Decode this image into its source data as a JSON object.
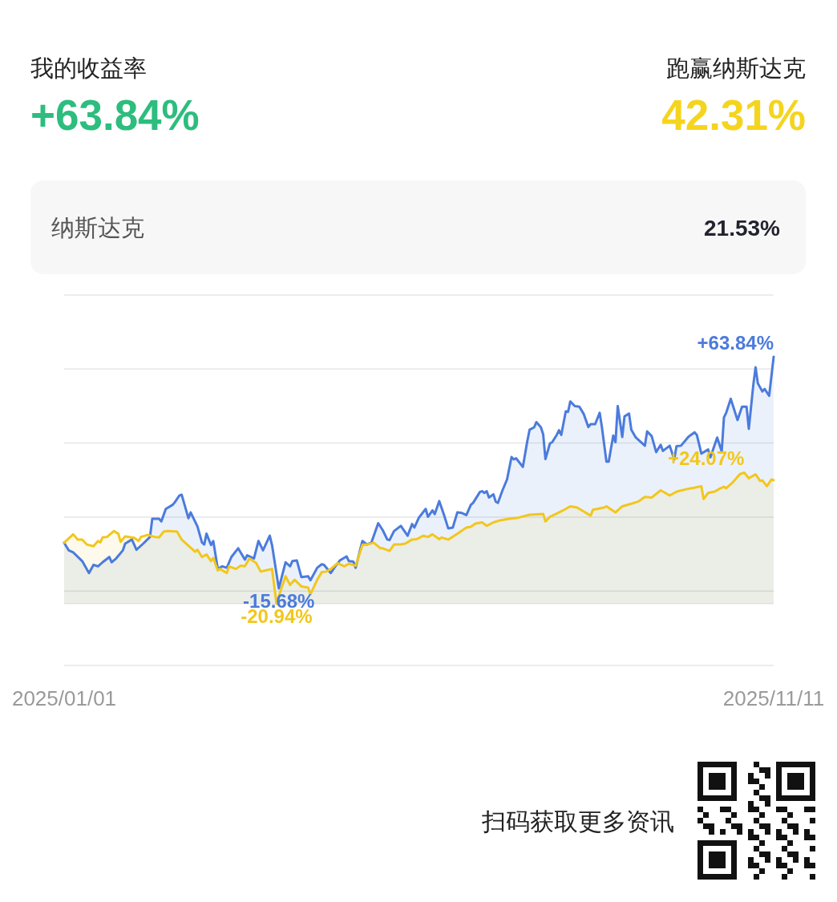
{
  "chart_data": [
    {
      "type": "other",
      "annotations": [
        "我的收益率",
        "+63.84%",
        "跑赢纳斯达克",
        "42.31%",
        "纳斯达克",
        "21.53%"
      ]
    },
    {
      "type": "line",
      "xlim": [
        "2025-01-01",
        "2025-11-11"
      ],
      "xticks": [
        {
          "value": "2025-01-01",
          "label": "2025/01/01"
        },
        {
          "value": "2025-11-11",
          "label": "2025/11/11"
        }
      ],
      "ylim": [
        -20.94,
        85
      ],
      "yticks": [
        {
          "value": -16.6,
          "label": null
        },
        {
          "value": 8.8,
          "label": null
        },
        {
          "value": 34.2,
          "label": null
        },
        {
          "value": 59.6,
          "label": null
        },
        {
          "value": 85,
          "label": null
        }
      ],
      "grid": "y",
      "tick_labels": "x",
      "series": [
        {
          "color": "#4b7bdc",
          "x": [
            "2025-01-01",
            "2025-01-03",
            "2025-01-05",
            "2025-01-09",
            "2025-01-12",
            "2025-01-14",
            "2025-01-16",
            "2025-01-18",
            "2025-01-21",
            "2025-01-22",
            "2025-01-24",
            "2025-01-27",
            "2025-01-28",
            "2025-01-31",
            "2025-02-02",
            "2025-02-05",
            "2025-02-08",
            "2025-02-09",
            "2025-02-12",
            "2025-02-13",
            "2025-02-15",
            "2025-02-18",
            "2025-02-19",
            "2025-02-21",
            "2025-02-22",
            "2025-02-25",
            "2025-02-26",
            "2025-03-01",
            "2025-03-03",
            "2025-03-04",
            "2025-03-05",
            "2025-03-07",
            "2025-03-08",
            "2025-03-10",
            "2025-03-12",
            "2025-03-14",
            "2025-03-16",
            "2025-03-19",
            "2025-03-22",
            "2025-03-23",
            "2025-03-26",
            "2025-03-28",
            "2025-03-30",
            "2025-04-02",
            "2025-04-03",
            "2025-04-06",
            "2025-04-09",
            "2025-04-11",
            "2025-04-12",
            "2025-04-14",
            "2025-04-16",
            "2025-04-19",
            "2025-04-20",
            "2025-04-23",
            "2025-04-25",
            "2025-04-26",
            "2025-04-29",
            "2025-05-01",
            "2025-05-03",
            "2025-05-06",
            "2025-05-07",
            "2025-05-09",
            "2025-05-10",
            "2025-05-13",
            "2025-05-15",
            "2025-05-17",
            "2025-05-20",
            "2025-05-22",
            "2025-05-24",
            "2025-05-25",
            "2025-05-27",
            "2025-05-30",
            "2025-06-02",
            "2025-06-04",
            "2025-06-05",
            "2025-06-07",
            "2025-06-10",
            "2025-06-11",
            "2025-06-13",
            "2025-06-14",
            "2025-06-16",
            "2025-06-18",
            "2025-06-20",
            "2025-06-22",
            "2025-06-24",
            "2025-06-26",
            "2025-06-28",
            "2025-06-30",
            "2025-07-01",
            "2025-07-04",
            "2025-07-05",
            "2025-07-06",
            "2025-07-07",
            "2025-07-08",
            "2025-07-10",
            "2025-07-11",
            "2025-07-12",
            "2025-07-14",
            "2025-07-16",
            "2025-07-18",
            "2025-07-19",
            "2025-07-20",
            "2025-07-23",
            "2025-07-25",
            "2025-07-26",
            "2025-07-28",
            "2025-07-29",
            "2025-07-31",
            "2025-08-01",
            "2025-08-02",
            "2025-08-04",
            "2025-08-05",
            "2025-08-07",
            "2025-08-08",
            "2025-08-09",
            "2025-08-11",
            "2025-08-12",
            "2025-08-13",
            "2025-08-15",
            "2025-08-17",
            "2025-08-19",
            "2025-08-21",
            "2025-08-22",
            "2025-08-24",
            "2025-08-26",
            "2025-08-27",
            "2025-08-29",
            "2025-08-30",
            "2025-09-01",
            "2025-09-02",
            "2025-09-03",
            "2025-09-05",
            "2025-09-06",
            "2025-09-08",
            "2025-09-09",
            "2025-09-11",
            "2025-09-15",
            "2025-09-16",
            "2025-09-18",
            "2025-09-20",
            "2025-09-22",
            "2025-09-23",
            "2025-09-26",
            "2025-09-28",
            "2025-09-29",
            "2025-10-01",
            "2025-10-04",
            "2025-10-05",
            "2025-10-07",
            "2025-10-08",
            "2025-10-10",
            "2025-10-13",
            "2025-10-14",
            "2025-10-17",
            "2025-10-19",
            "2025-10-20",
            "2025-10-21",
            "2025-10-23",
            "2025-10-26",
            "2025-10-28",
            "2025-10-30",
            "2025-10-31",
            "2025-11-02",
            "2025-11-03",
            "2025-11-04",
            "2025-11-06",
            "2025-11-07",
            "2025-11-09",
            "2025-11-11"
          ],
          "values": [
            0,
            -2.6,
            -3.3,
            -6.3,
            -10.4,
            -7.6,
            -8.1,
            -6.7,
            -4.9,
            -6.7,
            -5.4,
            -2.6,
            -0.3,
            1.1,
            -2.4,
            -0.3,
            2.0,
            8.2,
            8.2,
            7.3,
            11.6,
            13.0,
            13.9,
            16.2,
            16.5,
            8.4,
            10.4,
            5.6,
            0.1,
            -0.6,
            3.1,
            -0.8,
            0.6,
            -9.0,
            -8.1,
            -8.6,
            -4.9,
            -1.9,
            -5.8,
            -4.3,
            -5.4,
            0.6,
            -2.6,
            2.4,
            -0.8,
            -15.68,
            -6.7,
            -8.1,
            -6.3,
            -6.1,
            -11.8,
            -11.5,
            -12.9,
            -8.6,
            -7.4,
            -7.6,
            -10.4,
            -8.1,
            -6.1,
            -4.7,
            -6.3,
            -6.5,
            -8.6,
            0.6,
            -0.6,
            0.1,
            6.7,
            4.3,
            1.1,
            0.9,
            4.0,
            5.8,
            2.4,
            6.4,
            5.2,
            8.6,
            11.6,
            8.9,
            11.1,
            9.8,
            14.3,
            9.8,
            4.9,
            5.2,
            10.4,
            10.2,
            9.5,
            13.0,
            13.7,
            17.4,
            17.7,
            17.1,
            17.7,
            15.5,
            16.6,
            14.1,
            13.7,
            18.0,
            21.7,
            29.4,
            28.6,
            29.0,
            26.0,
            35.0,
            38.8,
            39.6,
            41.4,
            39.6,
            37.2,
            28.7,
            34.1,
            34.5,
            37.0,
            38.6,
            37.0,
            45.1,
            44.9,
            48.5,
            46.9,
            46.7,
            44.1,
            39.7,
            40.7,
            40.7,
            44.6,
            39.6,
            27.8,
            27.8,
            36.8,
            34.5,
            46.9,
            36.3,
            43.4,
            44.3,
            38.8,
            36.1,
            33.3,
            38.2,
            36.6,
            31.1,
            33.6,
            31.5,
            33.3,
            28.6,
            33.1,
            33.3,
            36.1,
            36.8,
            37.9,
            37.0,
            30.6,
            32.0,
            29.3,
            36.1,
            31.3,
            43.0,
            44.6,
            49.4,
            42.1,
            46.7,
            46.7,
            39.1,
            54.2,
            60.2,
            54.7,
            51.9,
            52.8,
            50.4,
            63.84
          ],
          "upper": [
            0,
            -2.6,
            -3.3,
            -6.3,
            -10.4,
            -7.6,
            -8.1,
            -6.7,
            -4.9,
            -6.7,
            -5.4,
            -2.6,
            -0.3,
            1.1,
            -2.4,
            -0.3,
            2.0,
            8.2,
            8.2,
            7.3,
            11.6,
            13.0,
            13.9,
            16.2,
            16.5,
            8.4,
            10.4,
            5.6,
            0.1,
            -0.6,
            3.1,
            -0.8,
            0.6,
            -9.0,
            -8.1,
            -8.6,
            -4.9,
            -1.9,
            -5.8,
            -4.3,
            -5.4,
            0.6,
            -2.6,
            2.4,
            -0.8,
            -15.68,
            -6.7,
            -8.1,
            -6.3,
            -6.1,
            -11.8,
            -11.5,
            -12.9,
            -8.6,
            -7.4,
            -7.6,
            -10.4,
            -8.1,
            -6.1,
            -4.7,
            -6.3,
            -6.5,
            -8.6,
            0.6,
            -0.6,
            0.1,
            6.7,
            4.3,
            1.1,
            0.9,
            4.0,
            5.8,
            2.4,
            6.4,
            5.2,
            8.6,
            11.6,
            8.9,
            11.1,
            9.8,
            14.3,
            9.8,
            4.9,
            5.2,
            10.4,
            10.2,
            9.5,
            13.0,
            13.7,
            17.4,
            17.7,
            17.1,
            17.7,
            15.5,
            16.6,
            14.1,
            13.7,
            18.0,
            21.7,
            29.4,
            28.6,
            29.0,
            26.0,
            35.0,
            38.8,
            39.6,
            41.4,
            39.6,
            37.2,
            28.7,
            34.1,
            34.5,
            37.0,
            38.6,
            37.0,
            45.1,
            44.9,
            48.5,
            46.9,
            46.7,
            44.1,
            39.7,
            40.7,
            40.7,
            44.6,
            39.6,
            27.8,
            27.8,
            36.8,
            34.5,
            46.9,
            36.3,
            43.4,
            44.3,
            38.8,
            36.1,
            33.3,
            38.2,
            36.6,
            31.1,
            33.6,
            31.5,
            33.3,
            28.6,
            33.1,
            33.3,
            36.1,
            36.8,
            37.9,
            37.0,
            30.6,
            32.0,
            29.3,
            36.1,
            31.3,
            43.0,
            44.6,
            49.4,
            42.1,
            46.7,
            46.7,
            39.1,
            54.2,
            60.2,
            54.7,
            51.9,
            52.8,
            50.4,
            63.84
          ],
          "lower": [
            -20.94,
            -20.94,
            -20.94,
            -20.94,
            -20.94,
            -20.94,
            -20.94,
            -20.94,
            -20.94,
            -20.94,
            -20.94,
            -20.94,
            -20.94,
            -20.94,
            -20.94,
            -20.94,
            -20.94,
            -20.94,
            -20.94,
            -20.94,
            -20.94,
            -20.94,
            -20.94,
            -20.94,
            -20.94,
            -20.94,
            -20.94,
            -20.94,
            -20.94,
            -20.94,
            -20.94,
            -20.94,
            -20.94,
            -20.94,
            -20.94,
            -20.94,
            -20.94,
            -20.94,
            -20.94,
            -20.94,
            -20.94,
            -20.94,
            -20.94,
            -20.94,
            -20.94,
            -20.94,
            -20.94,
            -20.94,
            -20.94,
            -20.94,
            -20.94,
            -20.94,
            -20.94,
            -20.94,
            -20.94,
            -20.94,
            -20.94,
            -20.94,
            -20.94,
            -20.94,
            -20.94,
            -20.94,
            -20.94,
            -20.94,
            -20.94,
            -20.94,
            -20.94,
            -20.94,
            -20.94,
            -20.94,
            -20.94,
            -20.94,
            -20.94,
            -20.94,
            -20.94,
            -20.94,
            -20.94,
            -20.94,
            -20.94,
            -20.94,
            -20.94,
            -20.94,
            -20.94,
            -20.94,
            -20.94,
            -20.94,
            -20.94,
            -20.94,
            -20.94,
            -20.94,
            -20.94,
            -20.94,
            -20.94,
            -20.94,
            -20.94,
            -20.94,
            -20.94,
            -20.94,
            -20.94,
            -20.94,
            -20.94,
            -20.94,
            -20.94,
            -20.94,
            -20.94,
            -20.94,
            -20.94,
            -20.94,
            -20.94,
            -20.94,
            -20.94,
            -20.94,
            -20.94,
            -20.94,
            -20.94,
            -20.94,
            -20.94,
            -20.94,
            -20.94,
            -20.94,
            -20.94,
            -20.94,
            -20.94,
            -20.94,
            -20.94,
            -20.94,
            -20.94,
            -20.94,
            -20.94,
            -20.94,
            -20.94,
            -20.94,
            -20.94,
            -20.94,
            -20.94,
            -20.94,
            -20.94,
            -20.94,
            -20.94,
            -20.94,
            -20.94,
            -20.94,
            -20.94,
            -20.94,
            -20.94,
            -20.94,
            -20.94,
            -20.94,
            -20.94,
            -20.94,
            -20.94,
            -20.94,
            -20.94,
            -20.94,
            -20.94,
            -20.94,
            -20.94,
            -20.94,
            -20.94,
            -20.94,
            -20.94,
            -20.94,
            -20.94,
            -20.94,
            -20.94,
            -20.94,
            -20.94,
            -20.94,
            -20.94
          ],
          "value_labels": [
            null,
            null,
            null,
            null,
            null,
            null,
            null,
            null,
            null,
            null,
            null,
            null,
            null,
            null,
            null,
            null,
            null,
            null,
            null,
            null,
            null,
            null,
            null,
            null,
            null,
            null,
            null,
            null,
            null,
            null,
            null,
            null,
            null,
            null,
            null,
            null,
            null,
            null,
            null,
            null,
            null,
            null,
            null,
            null,
            null,
            "-15.68%",
            null,
            null,
            null,
            null,
            null,
            null,
            null,
            null,
            null,
            null,
            null,
            null,
            null,
            null,
            null,
            null,
            null,
            null,
            null,
            null,
            null,
            null,
            null,
            null,
            null,
            null,
            null,
            null,
            null,
            null,
            null,
            null,
            null,
            null,
            null,
            null,
            null,
            null,
            null,
            null,
            null,
            null,
            null,
            null,
            null,
            null,
            null,
            null,
            null,
            null,
            null,
            null,
            null,
            null,
            null,
            null,
            null,
            null,
            null,
            null,
            null,
            null,
            null,
            null,
            null,
            null,
            null,
            null,
            null,
            null,
            null,
            null,
            null,
            null,
            null,
            null,
            null,
            null,
            null,
            null,
            null,
            null,
            null,
            null,
            null,
            null,
            null,
            null,
            null,
            null,
            null,
            null,
            null,
            null,
            null,
            null,
            null,
            null,
            null,
            null,
            null,
            null,
            null,
            null,
            null,
            null,
            null,
            null,
            null,
            null,
            null,
            null,
            null,
            null,
            null,
            null,
            null,
            null,
            null,
            null,
            null,
            null,
            "+63.84%"
          ]
        },
        {
          "color": "#f2c71c",
          "x": [
            "2025-01-01",
            "2025-01-05",
            "2025-01-07",
            "2025-01-09",
            "2025-01-11",
            "2025-01-14",
            "2025-01-16",
            "2025-01-17",
            "2025-01-18",
            "2025-01-20",
            "2025-01-23",
            "2025-01-25",
            "2025-01-26",
            "2025-01-28",
            "2025-02-01",
            "2025-02-03",
            "2025-02-04",
            "2025-02-07",
            "2025-02-10",
            "2025-02-12",
            "2025-02-14",
            "2025-02-16",
            "2025-02-20",
            "2025-02-22",
            "2025-02-25",
            "2025-02-28",
            "2025-03-01",
            "2025-03-03",
            "2025-03-05",
            "2025-03-07",
            "2025-03-08",
            "2025-03-10",
            "2025-03-11",
            "2025-03-14",
            "2025-03-15",
            "2025-03-18",
            "2025-03-20",
            "2025-03-22",
            "2025-03-24",
            "2025-03-27",
            "2025-03-29",
            "2025-03-31",
            "2025-04-03",
            "2025-04-05",
            "2025-04-07",
            "2025-04-09",
            "2025-04-11",
            "2025-04-13",
            "2025-04-16",
            "2025-04-19",
            "2025-04-20",
            "2025-04-23",
            "2025-04-25",
            "2025-04-27",
            "2025-04-29",
            "2025-05-02",
            "2025-05-05",
            "2025-05-07",
            "2025-05-10",
            "2025-05-13",
            "2025-05-15",
            "2025-05-18",
            "2025-05-21",
            "2025-05-22",
            "2025-05-25",
            "2025-05-27",
            "2025-05-30",
            "2025-06-01",
            "2025-06-04",
            "2025-06-06",
            "2025-06-09",
            "2025-06-11",
            "2025-06-13",
            "2025-06-16",
            "2025-06-17",
            "2025-06-20",
            "2025-06-24",
            "2025-06-28",
            "2025-06-30",
            "2025-07-02",
            "2025-07-05",
            "2025-07-07",
            "2025-07-10",
            "2025-07-13",
            "2025-07-17",
            "2025-07-21",
            "2025-07-26",
            "2025-08-01",
            "2025-08-02",
            "2025-08-04",
            "2025-08-08",
            "2025-08-11",
            "2025-08-13",
            "2025-08-16",
            "2025-08-19",
            "2025-08-22",
            "2025-08-23",
            "2025-08-28",
            "2025-08-29",
            "2025-09-02",
            "2025-09-05",
            "2025-09-09",
            "2025-09-12",
            "2025-09-15",
            "2025-09-18",
            "2025-09-22",
            "2025-09-26",
            "2025-09-29",
            "2025-10-04",
            "2025-10-07",
            "2025-10-10",
            "2025-10-11",
            "2025-10-13",
            "2025-10-16",
            "2025-10-18",
            "2025-10-20",
            "2025-10-21",
            "2025-10-24",
            "2025-10-27",
            "2025-10-29",
            "2025-10-31",
            "2025-11-03",
            "2025-11-05",
            "2025-11-06",
            "2025-11-08",
            "2025-11-10",
            "2025-11-11"
          ],
          "values": [
            0,
            2.9,
            1.1,
            1.1,
            -0.6,
            -1.2,
            0.6,
            0.1,
            1.8,
            2.0,
            4.0,
            3.1,
            0.3,
            2.2,
            1.7,
            0.6,
            2.0,
            2.7,
            2.0,
            1.8,
            3.8,
            4.0,
            3.8,
            1.1,
            -1.0,
            -3.1,
            -2.4,
            -4.9,
            -4.0,
            -6.3,
            -5.2,
            -9.5,
            -9.0,
            -10.4,
            -8.1,
            -9.0,
            -7.9,
            -8.1,
            -5.4,
            -7.0,
            -9.9,
            -9.5,
            -9.0,
            -20.94,
            -15.9,
            -11.5,
            -14.5,
            -12.7,
            -15.0,
            -15.4,
            -17.7,
            -12.7,
            -10.1,
            -9.9,
            -9.0,
            -7.0,
            -8.1,
            -7.2,
            -7.9,
            -0.8,
            -0.6,
            0.0,
            -1.9,
            -1.9,
            -2.8,
            -0.6,
            -0.6,
            -0.3,
            1.1,
            1.2,
            2.4,
            2.0,
            2.9,
            1.2,
            1.8,
            1.1,
            3.1,
            5.2,
            5.5,
            6.6,
            7.0,
            5.8,
            7.0,
            7.7,
            8.2,
            8.6,
            9.6,
            9.9,
            7.3,
            8.9,
            10.4,
            11.6,
            12.5,
            12.1,
            10.7,
            9.3,
            11.3,
            12.1,
            12.5,
            10.4,
            12.5,
            13.4,
            14.1,
            15.7,
            15.5,
            18.0,
            16.2,
            17.5,
            18.5,
            18.9,
            19.4,
            15.0,
            17.1,
            17.6,
            18.5,
            19.2,
            18.7,
            20.8,
            23.5,
            24.07,
            22.1,
            23.5,
            21.2,
            21.4,
            19.4,
            21.7,
            21.53
          ],
          "upper": [
            0,
            2.9,
            1.1,
            1.1,
            -0.6,
            -1.2,
            0.6,
            0.1,
            1.8,
            2.0,
            4.0,
            3.1,
            0.3,
            2.2,
            1.7,
            0.6,
            2.0,
            2.7,
            2.0,
            1.8,
            3.8,
            4.0,
            3.8,
            1.1,
            -1.0,
            -3.1,
            -2.4,
            -4.9,
            -4.0,
            -6.3,
            -5.2,
            -9.5,
            -9.0,
            -10.4,
            -8.1,
            -9.0,
            -7.9,
            -8.1,
            -5.4,
            -7.0,
            -9.9,
            -9.5,
            -9.0,
            -20.94,
            -15.9,
            -11.5,
            -14.5,
            -12.7,
            -15.0,
            -15.4,
            -17.7,
            -12.7,
            -10.1,
            -9.9,
            -9.0,
            -7.0,
            -8.1,
            -7.2,
            -7.9,
            -0.8,
            -0.6,
            0.0,
            -1.9,
            -1.9,
            -2.8,
            -0.6,
            -0.6,
            -0.3,
            1.1,
            1.2,
            2.4,
            2.0,
            2.9,
            1.2,
            1.8,
            1.1,
            3.1,
            5.2,
            5.5,
            6.6,
            7.0,
            5.8,
            7.0,
            7.7,
            8.2,
            8.6,
            9.6,
            9.9,
            7.3,
            8.9,
            10.4,
            11.6,
            12.5,
            12.1,
            10.7,
            9.3,
            11.3,
            12.1,
            12.5,
            10.4,
            12.5,
            13.4,
            14.1,
            15.7,
            15.5,
            18.0,
            16.2,
            17.5,
            18.5,
            18.9,
            19.4,
            15.0,
            17.1,
            17.6,
            18.5,
            19.2,
            18.7,
            20.8,
            23.5,
            24.07,
            22.1,
            23.5,
            21.2,
            21.4,
            19.4,
            21.7,
            21.53
          ],
          "lower": [
            -20.94,
            -20.94,
            -20.94,
            -20.94,
            -20.94,
            -20.94,
            -20.94,
            -20.94,
            -20.94,
            -20.94,
            -20.94,
            -20.94,
            -20.94,
            -20.94,
            -20.94,
            -20.94,
            -20.94,
            -20.94,
            -20.94,
            -20.94,
            -20.94,
            -20.94,
            -20.94,
            -20.94,
            -20.94,
            -20.94,
            -20.94,
            -20.94,
            -20.94,
            -20.94,
            -20.94,
            -20.94,
            -20.94,
            -20.94,
            -20.94,
            -20.94,
            -20.94,
            -20.94,
            -20.94,
            -20.94,
            -20.94,
            -20.94,
            -20.94,
            -20.94,
            -20.94,
            -20.94,
            -20.94,
            -20.94,
            -20.94,
            -20.94,
            -20.94,
            -20.94,
            -20.94,
            -20.94,
            -20.94,
            -20.94,
            -20.94,
            -20.94,
            -20.94,
            -20.94,
            -20.94,
            -20.94,
            -20.94,
            -20.94,
            -20.94,
            -20.94,
            -20.94,
            -20.94,
            -20.94,
            -20.94,
            -20.94,
            -20.94,
            -20.94,
            -20.94,
            -20.94,
            -20.94,
            -20.94,
            -20.94,
            -20.94,
            -20.94,
            -20.94,
            -20.94,
            -20.94,
            -20.94,
            -20.94,
            -20.94,
            -20.94,
            -20.94,
            -20.94,
            -20.94,
            -20.94,
            -20.94,
            -20.94,
            -20.94,
            -20.94,
            -20.94,
            -20.94,
            -20.94,
            -20.94,
            -20.94,
            -20.94,
            -20.94,
            -20.94,
            -20.94,
            -20.94,
            -20.94,
            -20.94,
            -20.94,
            -20.94,
            -20.94,
            -20.94,
            -20.94,
            -20.94,
            -20.94,
            -20.94,
            -20.94,
            -20.94,
            -20.94,
            -20.94,
            -20.94,
            -20.94,
            -20.94,
            -20.94,
            -20.94,
            -20.94,
            -20.94,
            -20.94
          ],
          "value_labels": [
            null,
            null,
            null,
            null,
            null,
            null,
            null,
            null,
            null,
            null,
            null,
            null,
            null,
            null,
            null,
            null,
            null,
            null,
            null,
            null,
            null,
            null,
            null,
            null,
            null,
            null,
            null,
            null,
            null,
            null,
            null,
            null,
            null,
            null,
            null,
            null,
            null,
            null,
            null,
            null,
            null,
            null,
            null,
            "-20.94%",
            null,
            null,
            null,
            null,
            null,
            null,
            null,
            null,
            null,
            null,
            null,
            null,
            null,
            null,
            null,
            null,
            null,
            null,
            null,
            null,
            null,
            null,
            null,
            null,
            null,
            null,
            null,
            null,
            null,
            null,
            null,
            null,
            null,
            null,
            null,
            null,
            null,
            null,
            null,
            null,
            null,
            null,
            null,
            null,
            null,
            null,
            null,
            null,
            null,
            null,
            null,
            null,
            null,
            null,
            null,
            null,
            null,
            null,
            null,
            null,
            null,
            null,
            null,
            null,
            null,
            null,
            null,
            null,
            null,
            null,
            null,
            null,
            null,
            null,
            null,
            "+24.07%",
            null,
            null,
            null,
            null,
            null,
            null,
            null
          ]
        }
      ]
    },
    {
      "type": "other",
      "annotations": [
        "扫码获取更多资讯"
      ]
    }
  ]
}
